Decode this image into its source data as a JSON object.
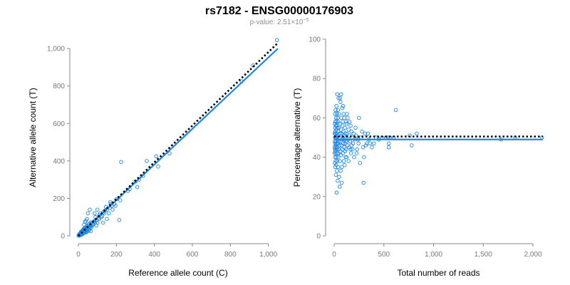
{
  "header": {
    "title": "rs7182 - ENSG00000176903",
    "pvalue_prefix": "p-value: 2.51×10",
    "pvalue_exp": "−5"
  },
  "colors": {
    "points": "#1f87e0",
    "fit": "#1f87e0",
    "expected": "#000000"
  },
  "chart_data": [
    {
      "type": "scatter",
      "xlabel": "Reference allele count (C)",
      "ylabel": "Alternative allele count (T)",
      "xlim": [
        0,
        1050
      ],
      "ylim": [
        0,
        1050
      ],
      "xticks": [
        0,
        200,
        400,
        600,
        800,
        1000
      ],
      "xtick_labels": [
        "0",
        "200",
        "400",
        "600",
        "800",
        "1,000"
      ],
      "yticks": [
        0,
        200,
        400,
        600,
        800,
        1000
      ],
      "ytick_labels": [
        "0",
        "200",
        "400",
        "600",
        "800",
        "1,000"
      ],
      "expected_line": {
        "style": "dotted",
        "x": [
          0,
          1050
        ],
        "y": [
          0,
          1030
        ]
      },
      "fit_line": {
        "style": "solid",
        "x": [
          0,
          1050
        ],
        "y": [
          0,
          1000
        ]
      },
      "points": [
        [
          1045,
          1045
        ],
        [
          920,
          910
        ],
        [
          860,
          825
        ],
        [
          480,
          440
        ],
        [
          410,
          425
        ],
        [
          420,
          370
        ],
        [
          360,
          400
        ],
        [
          340,
          320
        ],
        [
          320,
          300
        ],
        [
          300,
          290
        ],
        [
          310,
          260
        ],
        [
          270,
          250
        ],
        [
          260,
          240
        ],
        [
          225,
          395
        ],
        [
          220,
          190
        ],
        [
          215,
          85
        ],
        [
          200,
          195
        ],
        [
          195,
          160
        ],
        [
          190,
          170
        ],
        [
          180,
          140
        ],
        [
          175,
          160
        ],
        [
          170,
          170
        ],
        [
          168,
          180
        ],
        [
          165,
          150
        ],
        [
          160,
          120
        ],
        [
          150,
          140
        ],
        [
          145,
          155
        ],
        [
          140,
          135
        ],
        [
          135,
          120
        ],
        [
          130,
          125
        ],
        [
          125,
          105
        ],
        [
          120,
          100
        ],
        [
          115,
          120
        ],
        [
          110,
          90
        ],
        [
          105,
          95
        ],
        [
          100,
          140
        ],
        [
          100,
          70
        ],
        [
          95,
          85
        ],
        [
          90,
          100
        ],
        [
          88,
          72
        ],
        [
          85,
          80
        ],
        [
          80,
          75
        ],
        [
          78,
          60
        ],
        [
          75,
          62
        ],
        [
          72,
          55
        ],
        [
          70,
          68
        ],
        [
          68,
          45
        ],
        [
          66,
          72
        ],
        [
          65,
          55
        ],
        [
          62,
          40
        ],
        [
          60,
          50
        ],
        [
          58,
          65
        ],
        [
          57,
          30
        ],
        [
          55,
          60
        ],
        [
          54,
          38
        ],
        [
          52,
          45
        ],
        [
          50,
          52
        ],
        [
          48,
          35
        ],
        [
          47,
          42
        ],
        [
          46,
          22
        ],
        [
          45,
          55
        ],
        [
          44,
          40
        ],
        [
          43,
          30
        ],
        [
          42,
          48
        ],
        [
          40,
          25
        ],
        [
          40,
          18
        ],
        [
          38,
          35
        ],
        [
          37,
          45
        ],
        [
          36,
          28
        ],
        [
          35,
          35
        ],
        [
          34,
          20
        ],
        [
          33,
          30
        ],
        [
          32,
          40
        ],
        [
          31,
          25
        ],
        [
          30,
          30
        ],
        [
          29,
          15
        ],
        [
          28,
          38
        ],
        [
          27,
          22
        ],
        [
          26,
          28
        ],
        [
          25,
          32
        ],
        [
          25,
          12
        ],
        [
          24,
          20
        ],
        [
          23,
          25
        ],
        [
          22,
          30
        ],
        [
          21,
          15
        ],
        [
          20,
          22
        ],
        [
          20,
          10
        ],
        [
          19,
          25
        ],
        [
          18,
          18
        ],
        [
          17,
          12
        ],
        [
          16,
          20
        ],
        [
          16,
          6
        ],
        [
          15,
          15
        ],
        [
          14,
          22
        ],
        [
          14,
          8
        ],
        [
          13,
          12
        ],
        [
          12,
          16
        ],
        [
          12,
          5
        ],
        [
          11,
          10
        ],
        [
          10,
          14
        ],
        [
          10,
          4
        ],
        [
          9,
          8
        ],
        [
          8,
          12
        ],
        [
          8,
          3
        ],
        [
          7,
          7
        ],
        [
          6,
          10
        ],
        [
          6,
          2
        ],
        [
          5,
          5
        ],
        [
          4,
          8
        ],
        [
          4,
          2
        ],
        [
          3,
          4
        ],
        [
          3,
          1
        ],
        [
          2,
          3
        ],
        [
          2,
          1
        ],
        [
          1,
          2
        ],
        [
          60,
          140
        ],
        [
          50,
          120
        ],
        [
          40,
          80
        ],
        [
          35,
          75
        ],
        [
          30,
          60
        ],
        [
          45,
          90
        ],
        [
          55,
          30
        ],
        [
          65,
          25
        ],
        [
          85,
          120
        ],
        [
          110,
          110
        ],
        [
          130,
          70
        ],
        [
          150,
          90
        ],
        [
          95,
          55
        ]
      ]
    },
    {
      "type": "scatter",
      "xlabel": "Total number of reads",
      "ylabel": "Percentage alternative (T)",
      "xlim": [
        0,
        2100
      ],
      "ylim": [
        0,
        100
      ],
      "xticks": [
        0,
        500,
        1000,
        1500,
        2000
      ],
      "xtick_labels": [
        "0",
        "500",
        "1,000",
        "1,500",
        "2,000"
      ],
      "yticks": [
        0,
        20,
        40,
        60,
        80,
        100
      ],
      "ytick_labels": [
        "0",
        "20",
        "40",
        "60",
        "80",
        "100"
      ],
      "expected_line": {
        "style": "dotted",
        "x": [
          0,
          2100
        ],
        "y": [
          50.5,
          50.5
        ]
      },
      "fit_line": {
        "style": "solid",
        "x": [
          0,
          2100
        ],
        "y": [
          49,
          49
        ]
      },
      "points": [
        [
          2090,
          50
        ],
        [
          1820,
          50
        ],
        [
          1680,
          49
        ],
        [
          830,
          52
        ],
        [
          780,
          46
        ],
        [
          760,
          51
        ],
        [
          620,
          64
        ],
        [
          600,
          50
        ],
        [
          560,
          50
        ],
        [
          550,
          47
        ],
        [
          550,
          45
        ],
        [
          540,
          50
        ],
        [
          520,
          50
        ],
        [
          480,
          50
        ],
        [
          450,
          49
        ],
        [
          420,
          50
        ],
        [
          400,
          47
        ],
        [
          380,
          45
        ],
        [
          360,
          47
        ],
        [
          350,
          49
        ],
        [
          340,
          52
        ],
        [
          330,
          47
        ],
        [
          320,
          46
        ],
        [
          310,
          52
        ],
        [
          300,
          40
        ],
        [
          295,
          27
        ],
        [
          290,
          45
        ],
        [
          280,
          53
        ],
        [
          270,
          50
        ],
        [
          260,
          37
        ],
        [
          250,
          60
        ],
        [
          245,
          47
        ],
        [
          240,
          49
        ],
        [
          230,
          44
        ],
        [
          225,
          42
        ],
        [
          220,
          51
        ],
        [
          215,
          55
        ],
        [
          210,
          49
        ],
        [
          200,
          40
        ],
        [
          195,
          52
        ],
        [
          190,
          47
        ],
        [
          185,
          44
        ],
        [
          180,
          50
        ],
        [
          175,
          53
        ],
        [
          170,
          42
        ],
        [
          165,
          56
        ],
        [
          160,
          48
        ],
        [
          155,
          51
        ],
        [
          150,
          45
        ],
        [
          145,
          54
        ],
        [
          140,
          49
        ],
        [
          135,
          46
        ],
        [
          130,
          52
        ],
        [
          128,
          62
        ],
        [
          125,
          40
        ],
        [
          122,
          48
        ],
        [
          120,
          44
        ],
        [
          118,
          58
        ],
        [
          115,
          52
        ],
        [
          112,
          47
        ],
        [
          110,
          43
        ],
        [
          108,
          55
        ],
        [
          105,
          49
        ],
        [
          102,
          60
        ],
        [
          100,
          45
        ],
        [
          98,
          51
        ],
        [
          96,
          38
        ],
        [
          94,
          53
        ],
        [
          92,
          47
        ],
        [
          90,
          66
        ],
        [
          88,
          42
        ],
        [
          86,
          50
        ],
        [
          84,
          56
        ],
        [
          82,
          44
        ],
        [
          80,
          49
        ],
        [
          78,
          35
        ],
        [
          76,
          52
        ],
        [
          74,
          46
        ],
        [
          72,
          60
        ],
        [
          70,
          41
        ],
        [
          68,
          54
        ],
        [
          66,
          48
        ],
        [
          64,
          68
        ],
        [
          62,
          43
        ],
        [
          60,
          52
        ],
        [
          58,
          38
        ],
        [
          56,
          57
        ],
        [
          54,
          46
        ],
        [
          52,
          50
        ],
        [
          50,
          30
        ],
        [
          50,
          62
        ],
        [
          48,
          44
        ],
        [
          46,
          55
        ],
        [
          45,
          48
        ],
        [
          44,
          70
        ],
        [
          42,
          40
        ],
        [
          41,
          53
        ],
        [
          40,
          35
        ],
        [
          40,
          58
        ],
        [
          39,
          47
        ],
        [
          38,
          64
        ],
        [
          37,
          42
        ],
        [
          36,
          51
        ],
        [
          35,
          28
        ],
        [
          35,
          60
        ],
        [
          34,
          45
        ],
        [
          33,
          55
        ],
        [
          32,
          38
        ],
        [
          31,
          49
        ],
        [
          30,
          72
        ],
        [
          30,
          42
        ],
        [
          29,
          56
        ],
        [
          28,
          33
        ],
        [
          28,
          50
        ],
        [
          27,
          62
        ],
        [
          26,
          44
        ],
        [
          25,
          52
        ],
        [
          25,
          22
        ],
        [
          24,
          47
        ],
        [
          23,
          58
        ],
        [
          22,
          40
        ],
        [
          22,
          66
        ],
        [
          21,
          50
        ],
        [
          20,
          36
        ],
        [
          20,
          54
        ],
        [
          19,
          45
        ],
        [
          18,
          60
        ],
        [
          18,
          31
        ],
        [
          17,
          48
        ],
        [
          16,
          56
        ],
        [
          16,
          42
        ],
        [
          15,
          52
        ],
        [
          15,
          38
        ],
        [
          14,
          46
        ],
        [
          14,
          64
        ],
        [
          13,
          50
        ],
        [
          12,
          43
        ],
        [
          12,
          58
        ],
        [
          11,
          35
        ],
        [
          11,
          53
        ],
        [
          10,
          47
        ],
        [
          10,
          40
        ],
        [
          9,
          55
        ],
        [
          9,
          62
        ],
        [
          8,
          44
        ],
        [
          8,
          50
        ],
        [
          7,
          37
        ],
        [
          7,
          57
        ],
        [
          6,
          48
        ],
        [
          6,
          42
        ],
        [
          5,
          52
        ],
        [
          5,
          45
        ],
        [
          60,
          70
        ],
        [
          70,
          72
        ],
        [
          80,
          65
        ],
        [
          55,
          25
        ],
        [
          65,
          33
        ],
        [
          75,
          27
        ],
        [
          85,
          58
        ],
        [
          95,
          62
        ],
        [
          105,
          36
        ],
        [
          115,
          40
        ],
        [
          125,
          57
        ],
        [
          135,
          60
        ],
        [
          145,
          38
        ],
        [
          155,
          58
        ],
        [
          165,
          44
        ],
        [
          175,
          46
        ]
      ]
    }
  ]
}
